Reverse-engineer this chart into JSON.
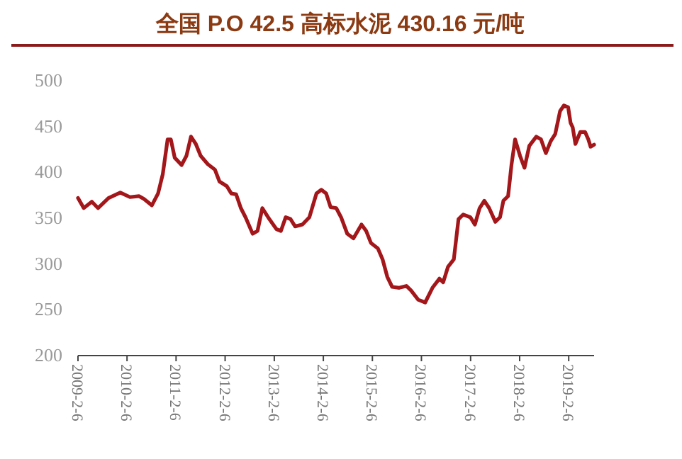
{
  "chart_data": {
    "type": "line",
    "title": "全国 P.O 42.5 高标水泥 430.16 元/吨",
    "x": [
      "2009-02-06",
      "2009-03-21",
      "2009-05-20",
      "2009-07-05",
      "2009-09-21",
      "2009-12-18",
      "2010-02-28",
      "2010-05-07",
      "2010-06-11",
      "2010-08-10",
      "2010-09-25",
      "2010-10-30",
      "2010-12-05",
      "2010-12-29",
      "2011-01-27",
      "2011-03-19",
      "2011-04-24",
      "2011-05-28",
      "2011-07-03",
      "2011-08-08",
      "2011-09-30",
      "2011-11-22",
      "2011-12-26",
      "2012-02-18",
      "2012-03-23",
      "2012-04-28",
      "2012-06-02",
      "2012-07-07",
      "2012-08-29",
      "2012-10-04",
      "2012-11-09",
      "2012-12-31",
      "2013-02-22",
      "2013-03-27",
      "2013-05-02",
      "2013-06-07",
      "2013-07-11",
      "2013-09-03",
      "2013-10-25",
      "2013-12-17",
      "2014-01-22",
      "2014-02-27",
      "2014-04-01",
      "2014-05-13",
      "2014-06-18",
      "2014-08-03",
      "2014-09-18",
      "2014-11-17",
      "2014-12-22",
      "2015-01-26",
      "2015-03-19",
      "2015-04-23",
      "2015-05-28",
      "2015-07-03",
      "2015-08-25",
      "2015-10-17",
      "2015-11-21",
      "2016-01-13",
      "2016-03-05",
      "2016-04-28",
      "2016-06-19",
      "2016-07-17",
      "2016-08-22",
      "2016-10-04",
      "2016-11-08",
      "2016-12-13",
      "2017-02-04",
      "2017-03-10",
      "2017-04-14",
      "2017-05-19",
      "2017-06-24",
      "2017-08-09",
      "2017-09-13",
      "2017-10-08",
      "2017-11-12",
      "2017-12-07",
      "2018-01-03",
      "2018-02-09",
      "2018-03-14",
      "2018-04-19",
      "2018-06-10",
      "2018-07-15",
      "2018-08-20",
      "2018-09-25",
      "2018-10-29",
      "2018-12-04",
      "2019-01-01",
      "2019-02-02",
      "2019-02-20",
      "2019-03-08",
      "2019-03-28",
      "2019-05-03",
      "2019-06-08",
      "2019-07-02",
      "2019-07-19",
      "2019-08-14"
    ],
    "series": [
      {
        "color": "#a3171b",
        "values": [
          372,
          361,
          368,
          361,
          372,
          378,
          373,
          374,
          371,
          364,
          377,
          398,
          436,
          436,
          416,
          408,
          418,
          439,
          431,
          418,
          409,
          403,
          390,
          385,
          377,
          376,
          361,
          351,
          333,
          336,
          361,
          349,
          338,
          336,
          351,
          349,
          341,
          343,
          351,
          377,
          381,
          377,
          362,
          361,
          351,
          333,
          328,
          343,
          336,
          323,
          317,
          305,
          286,
          275,
          274,
          276,
          271,
          261,
          258,
          274,
          284,
          280,
          297,
          305,
          349,
          354,
          351,
          343,
          361,
          369,
          361,
          346,
          351,
          369,
          374,
          408,
          436,
          418,
          405,
          429,
          439,
          436,
          421,
          434,
          442,
          467,
          473,
          471,
          454,
          449,
          431,
          444,
          444,
          436,
          428,
          430.16
        ]
      }
    ],
    "xlim": [
      "2009-02-06",
      "2019-08-14"
    ],
    "xticks": [
      {
        "value": "2009-02-06",
        "label": "2009-2-6"
      },
      {
        "value": "2010-02-06",
        "label": "2010-2-6"
      },
      {
        "value": "2011-02-06",
        "label": "2011-2-6"
      },
      {
        "value": "2012-02-06",
        "label": "2012-2-6"
      },
      {
        "value": "2013-02-06",
        "label": "2013-2-6"
      },
      {
        "value": "2014-02-06",
        "label": "2014-2-6"
      },
      {
        "value": "2015-02-06",
        "label": "2015-2-6"
      },
      {
        "value": "2016-02-06",
        "label": "2016-2-6"
      },
      {
        "value": "2017-02-06",
        "label": "2017-2-6"
      },
      {
        "value": "2018-02-06",
        "label": "2018-2-6"
      },
      {
        "value": "2019-02-06",
        "label": "2019-2-6"
      }
    ],
    "ylim": [
      200,
      500
    ],
    "yticks": [
      200,
      250,
      300,
      350,
      400,
      450,
      500
    ],
    "grid": false
  }
}
